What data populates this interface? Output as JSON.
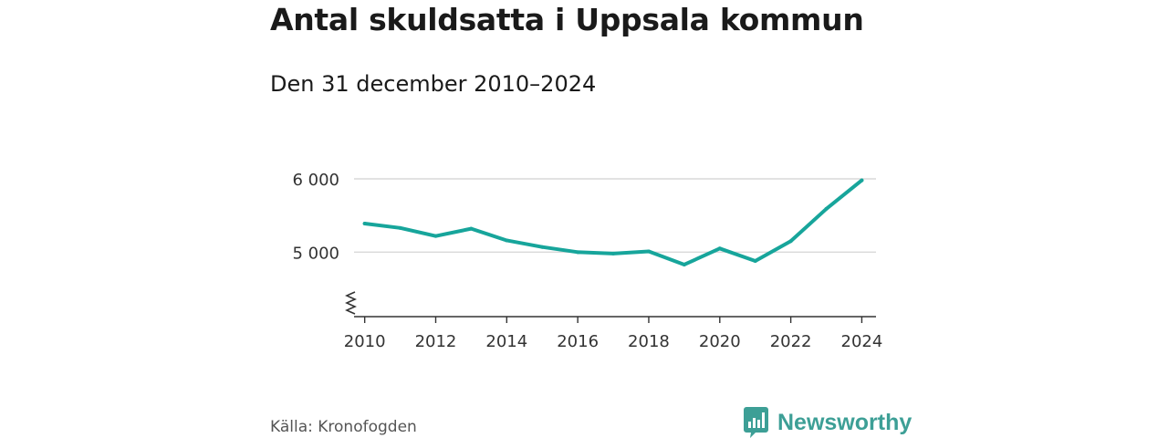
{
  "title": "Antal skuldsatta i Uppsala kommun",
  "subtitle": "Den 31 december 2010–2024",
  "source": "Källa: Kronofogden",
  "brand": {
    "name": "Newsworthy",
    "icon": "newsworthy-logo-icon",
    "color": "#3d9f96"
  },
  "colors": {
    "line": "#17a59b",
    "grid": "#d9d9d9",
    "axis": "#333333"
  },
  "chart_data": {
    "type": "line",
    "title": "Antal skuldsatta i Uppsala kommun",
    "subtitle": "Den 31 december 2010–2024",
    "xlabel": "",
    "ylabel": "",
    "x": [
      2010,
      2011,
      2012,
      2013,
      2014,
      2015,
      2016,
      2017,
      2018,
      2019,
      2020,
      2021,
      2022,
      2023,
      2024
    ],
    "series": [
      {
        "name": "Antal skuldsatta",
        "values": [
          5390,
          5330,
          5220,
          5320,
          5160,
          5070,
          5000,
          4980,
          5010,
          4830,
          5050,
          4880,
          5150,
          5590,
          5980
        ]
      }
    ],
    "y_ticks": [
      5000,
      6000
    ],
    "y_tick_labels": [
      "5 000",
      "6 000"
    ],
    "x_ticks": [
      2010,
      2012,
      2014,
      2016,
      2018,
      2020,
      2022,
      2024
    ],
    "x_tick_labels": [
      "2010",
      "2012",
      "2014",
      "2016",
      "2018",
      "2020",
      "2022",
      "2024"
    ],
    "xlim": [
      2009.7,
      2024.4
    ],
    "ylim": [
      4120,
      6000
    ],
    "y_axis_break": true,
    "grid": true
  }
}
